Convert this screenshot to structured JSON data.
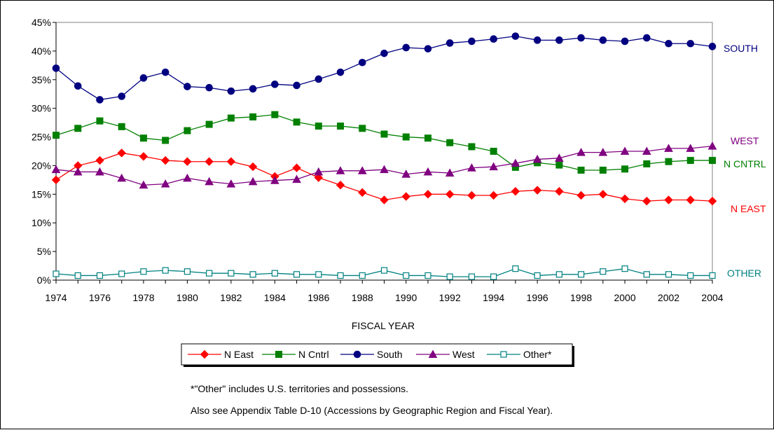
{
  "chart_data": {
    "type": "line",
    "xlabel": "FISCAL YEAR",
    "ylabel": "",
    "ylim": [
      0,
      45
    ],
    "y_ticks": [
      "0%",
      "5%",
      "10%",
      "15%",
      "20%",
      "25%",
      "30%",
      "35%",
      "40%",
      "45%"
    ],
    "x_tick_labels": [
      "1974",
      "1976",
      "1978",
      "1980",
      "1982",
      "1984",
      "1986",
      "1988",
      "1990",
      "1992",
      "1994",
      "1996",
      "1998",
      "2000",
      "2002",
      "2004"
    ],
    "grid": false,
    "x": [
      1974,
      1975,
      1976,
      1977,
      1978,
      1979,
      1980,
      1981,
      1982,
      1983,
      1984,
      1985,
      1986,
      1987,
      1988,
      1989,
      1990,
      1991,
      1992,
      1993,
      1994,
      1995,
      1996,
      1997,
      1998,
      1999,
      2000,
      2001,
      2002,
      2003,
      2004
    ],
    "series": [
      {
        "name": "N East",
        "end_label": "N EAST",
        "color": "#ff0000",
        "marker": "diamond",
        "values": [
          17.5,
          20.0,
          20.9,
          22.2,
          21.6,
          20.9,
          20.7,
          20.7,
          20.7,
          19.8,
          18.1,
          19.6,
          17.9,
          16.6,
          15.3,
          14.0,
          14.6,
          15.0,
          15.0,
          14.8,
          14.8,
          15.5,
          15.7,
          15.5,
          14.8,
          15.0,
          14.2,
          13.8,
          14.0,
          14.0,
          13.8
        ]
      },
      {
        "name": "N Cntrl",
        "end_label": "N CNTRL",
        "color": "#008000",
        "marker": "square",
        "values": [
          25.3,
          26.5,
          27.8,
          26.8,
          24.8,
          24.4,
          26.1,
          27.2,
          28.3,
          28.5,
          28.9,
          27.6,
          26.9,
          26.9,
          26.5,
          25.5,
          25.0,
          24.8,
          24.0,
          23.3,
          22.5,
          19.7,
          20.5,
          20.1,
          19.2,
          19.2,
          19.4,
          20.3,
          20.7,
          20.9,
          20.9
        ]
      },
      {
        "name": "South",
        "end_label": "SOUTH",
        "color": "#000080",
        "marker": "circle",
        "values": [
          37.0,
          33.9,
          31.5,
          32.1,
          35.3,
          36.3,
          33.8,
          33.6,
          33.0,
          33.4,
          34.2,
          34.0,
          35.1,
          36.3,
          38.0,
          39.6,
          40.6,
          40.4,
          41.4,
          41.7,
          42.1,
          42.6,
          41.9,
          41.9,
          42.3,
          41.9,
          41.7,
          42.3,
          41.3,
          41.3,
          40.8
        ]
      },
      {
        "name": "West",
        "end_label": "WEST",
        "color": "#800080",
        "marker": "triangle",
        "values": [
          19.3,
          18.9,
          18.9,
          17.8,
          16.6,
          16.8,
          17.8,
          17.2,
          16.8,
          17.2,
          17.4,
          17.6,
          18.9,
          19.1,
          19.1,
          19.3,
          18.5,
          18.9,
          18.7,
          19.6,
          19.8,
          20.4,
          21.1,
          21.3,
          22.3,
          22.3,
          22.5,
          22.5,
          23.0,
          23.0,
          23.4
        ]
      },
      {
        "name": "Other*",
        "end_label": "OTHER",
        "color": "#008080",
        "marker": "open-square",
        "values": [
          1.1,
          0.8,
          0.8,
          1.1,
          1.5,
          1.7,
          1.5,
          1.2,
          1.2,
          1.0,
          1.2,
          1.0,
          1.0,
          0.8,
          0.8,
          1.7,
          0.8,
          0.8,
          0.6,
          0.6,
          0.6,
          2.0,
          0.8,
          1.0,
          1.0,
          1.5,
          2.0,
          1.0,
          1.0,
          0.8,
          0.8
        ]
      }
    ],
    "legend_position": "bottom"
  },
  "footnotes": {
    "line1": "*\"Other\" includes U.S. territories and possessions.",
    "line2": "Also see Appendix Table D-10 (Accessions by Geographic Region and Fiscal Year)."
  }
}
